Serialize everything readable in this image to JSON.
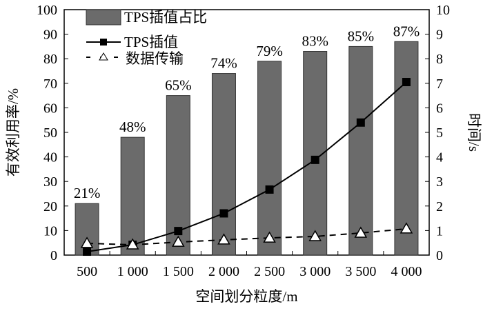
{
  "chart_data": {
    "type": "bar+line",
    "categories": [
      "500",
      "1 000",
      "1 500",
      "2 000",
      "2 500",
      "3 000",
      "3 500",
      "4 000"
    ],
    "xlabel": "空间划分粒度/m",
    "ylabel": "有效利用率/%",
    "y2label": "时间/s",
    "ylim": [
      0,
      100
    ],
    "y2lim": [
      0,
      10
    ],
    "yticks": [
      "0",
      "10",
      "20",
      "30",
      "40",
      "50",
      "60",
      "70",
      "80",
      "90",
      "100"
    ],
    "y2ticks": [
      "0",
      "1",
      "2",
      "3",
      "4",
      "5",
      "6",
      "7",
      "8",
      "9",
      "10"
    ],
    "legend_position": "top-left",
    "series": [
      {
        "name": "TPS插值占比",
        "type": "bar",
        "axis": "left",
        "values": [
          21,
          48,
          65,
          74,
          79,
          83,
          85,
          87
        ],
        "labels": [
          "21%",
          "48%",
          "65%",
          "74%",
          "79%",
          "83%",
          "85%",
          "87%"
        ],
        "color": "#6b6b6b"
      },
      {
        "name": "TPS插值",
        "type": "line",
        "axis": "right",
        "values": [
          0.14,
          0.42,
          0.98,
          1.7,
          2.67,
          3.88,
          5.4,
          7.05
        ],
        "color": "#000000"
      },
      {
        "name": "数据传输",
        "type": "line-dashed",
        "axis": "right",
        "values": [
          0.48,
          0.42,
          0.53,
          0.62,
          0.7,
          0.76,
          0.9,
          1.07
        ],
        "color": "#000000"
      }
    ]
  }
}
